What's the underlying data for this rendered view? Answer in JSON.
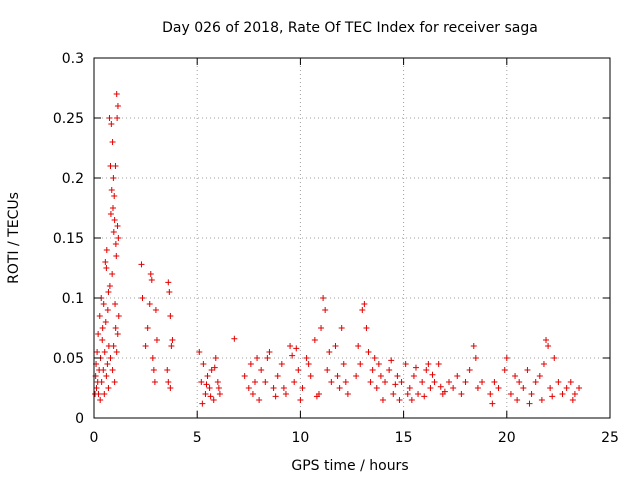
{
  "chart_data": {
    "type": "scatter",
    "title": "Day 026 of 2018, Rate Of TEC Index for receiver saga",
    "xlabel": "GPS time / hours",
    "ylabel": "ROTI / TECUs",
    "xlim": [
      0,
      25
    ],
    "ylim": [
      0,
      0.3
    ],
    "xticks": [
      0,
      5,
      10,
      15,
      20,
      25
    ],
    "xtick_labels": [
      "0",
      "5",
      "10",
      "15",
      "20",
      "25"
    ],
    "yticks": [
      0,
      0.05,
      0.1,
      0.15,
      0.2,
      0.25,
      0.3
    ],
    "ytick_labels": [
      "0",
      "0.05",
      "0.1",
      "0.15",
      "0.2",
      "0.25",
      "0.3"
    ],
    "grid": true,
    "marker": "+",
    "marker_color": "#e00000",
    "series": [
      {
        "name": "ROTI",
        "points": [
          [
            0.05,
            0.02
          ],
          [
            0.08,
            0.035
          ],
          [
            0.1,
            0.045
          ],
          [
            0.12,
            0.025
          ],
          [
            0.15,
            0.055
          ],
          [
            0.18,
            0.03
          ],
          [
            0.2,
            0.07
          ],
          [
            0.22,
            0.02
          ],
          [
            0.25,
            0.04
          ],
          [
            0.28,
            0.085
          ],
          [
            0.3,
            0.015
          ],
          [
            0.32,
            0.05
          ],
          [
            0.35,
            0.1
          ],
          [
            0.37,
            0.03
          ],
          [
            0.4,
            0.065
          ],
          [
            0.42,
            0.075
          ],
          [
            0.45,
            0.04
          ],
          [
            0.47,
            0.095
          ],
          [
            0.5,
            0.02
          ],
          [
            0.52,
            0.055
          ],
          [
            0.55,
            0.13
          ],
          [
            0.57,
            0.08
          ],
          [
            0.6,
            0.125
          ],
          [
            0.62,
            0.14
          ],
          [
            0.65,
            0.045
          ],
          [
            0.67,
            0.09
          ],
          [
            0.7,
            0.105
          ],
          [
            0.72,
            0.06
          ],
          [
            0.75,
            0.25
          ],
          [
            0.77,
            0.11
          ],
          [
            0.8,
            0.21
          ],
          [
            0.82,
            0.17
          ],
          [
            0.84,
            0.245
          ],
          [
            0.86,
            0.19
          ],
          [
            0.88,
            0.12
          ],
          [
            0.9,
            0.23
          ],
          [
            0.92,
            0.175
          ],
          [
            0.94,
            0.2
          ],
          [
            0.96,
            0.155
          ],
          [
            0.98,
            0.185
          ],
          [
            1.0,
            0.165
          ],
          [
            1.02,
            0.095
          ],
          [
            1.04,
            0.21
          ],
          [
            1.06,
            0.145
          ],
          [
            1.08,
            0.135
          ],
          [
            1.1,
            0.27
          ],
          [
            1.12,
            0.25
          ],
          [
            1.14,
            0.16
          ],
          [
            1.16,
            0.26
          ],
          [
            1.18,
            0.15
          ],
          [
            0.9,
            0.04
          ],
          [
            0.95,
            0.06
          ],
          [
            1.0,
            0.03
          ],
          [
            1.05,
            0.075
          ],
          [
            1.1,
            0.055
          ],
          [
            0.6,
            0.035
          ],
          [
            0.7,
            0.025
          ],
          [
            0.8,
            0.05
          ],
          [
            1.15,
            0.07
          ],
          [
            1.2,
            0.085
          ],
          [
            2.3,
            0.128
          ],
          [
            2.35,
            0.1
          ],
          [
            2.5,
            0.06
          ],
          [
            2.6,
            0.075
          ],
          [
            2.7,
            0.095
          ],
          [
            2.75,
            0.12
          ],
          [
            2.8,
            0.115
          ],
          [
            2.85,
            0.05
          ],
          [
            2.9,
            0.04
          ],
          [
            2.95,
            0.03
          ],
          [
            3.0,
            0.09
          ],
          [
            3.05,
            0.065
          ],
          [
            3.6,
            0.113
          ],
          [
            3.65,
            0.105
          ],
          [
            3.7,
            0.085
          ],
          [
            3.75,
            0.06
          ],
          [
            3.55,
            0.04
          ],
          [
            3.6,
            0.03
          ],
          [
            3.7,
            0.025
          ],
          [
            3.8,
            0.065
          ],
          [
            5.1,
            0.055
          ],
          [
            5.2,
            0.03
          ],
          [
            5.3,
            0.045
          ],
          [
            5.4,
            0.02
          ],
          [
            5.5,
            0.035
          ],
          [
            5.6,
            0.025
          ],
          [
            5.7,
            0.04
          ],
          [
            5.8,
            0.015
          ],
          [
            5.9,
            0.05
          ],
          [
            6.0,
            0.03
          ],
          [
            6.1,
            0.02
          ],
          [
            5.25,
            0.012
          ],
          [
            5.45,
            0.028
          ],
          [
            5.65,
            0.018
          ],
          [
            5.85,
            0.042
          ],
          [
            6.05,
            0.025
          ],
          [
            6.8,
            0.066
          ],
          [
            7.3,
            0.035
          ],
          [
            7.5,
            0.025
          ],
          [
            7.7,
            0.02
          ],
          [
            7.9,
            0.05
          ],
          [
            8.1,
            0.04
          ],
          [
            8.3,
            0.03
          ],
          [
            8.5,
            0.055
          ],
          [
            8.7,
            0.025
          ],
          [
            8.9,
            0.035
          ],
          [
            9.1,
            0.045
          ],
          [
            9.3,
            0.02
          ],
          [
            9.5,
            0.06
          ],
          [
            9.7,
            0.03
          ],
          [
            9.9,
            0.04
          ],
          [
            10.1,
            0.025
          ],
          [
            10.3,
            0.05
          ],
          [
            10.5,
            0.035
          ],
          [
            10.7,
            0.065
          ],
          [
            10.9,
            0.02
          ],
          [
            11.0,
            0.075
          ],
          [
            11.1,
            0.1
          ],
          [
            11.2,
            0.09
          ],
          [
            11.3,
            0.04
          ],
          [
            11.5,
            0.03
          ],
          [
            11.7,
            0.06
          ],
          [
            11.9,
            0.025
          ],
          [
            12.0,
            0.075
          ],
          [
            12.2,
            0.03
          ],
          [
            7.6,
            0.045
          ],
          [
            8.0,
            0.015
          ],
          [
            8.4,
            0.05
          ],
          [
            8.8,
            0.018
          ],
          [
            9.2,
            0.025
          ],
          [
            9.6,
            0.052
          ],
          [
            10.0,
            0.015
          ],
          [
            10.4,
            0.045
          ],
          [
            10.8,
            0.018
          ],
          [
            11.4,
            0.055
          ],
          [
            11.8,
            0.035
          ],
          [
            12.1,
            0.045
          ],
          [
            12.3,
            0.02
          ],
          [
            7.8,
            0.03
          ],
          [
            9.8,
            0.058
          ],
          [
            12.7,
            0.035
          ],
          [
            12.9,
            0.045
          ],
          [
            13.0,
            0.09
          ],
          [
            13.1,
            0.095
          ],
          [
            13.2,
            0.075
          ],
          [
            13.3,
            0.055
          ],
          [
            13.4,
            0.03
          ],
          [
            13.5,
            0.04
          ],
          [
            13.7,
            0.025
          ],
          [
            13.9,
            0.035
          ],
          [
            14.1,
            0.03
          ],
          [
            14.3,
            0.04
          ],
          [
            14.5,
            0.02
          ],
          [
            14.7,
            0.035
          ],
          [
            14.9,
            0.03
          ],
          [
            15.1,
            0.045
          ],
          [
            15.3,
            0.025
          ],
          [
            15.5,
            0.035
          ],
          [
            15.7,
            0.02
          ],
          [
            15.9,
            0.03
          ],
          [
            16.1,
            0.04
          ],
          [
            16.3,
            0.025
          ],
          [
            16.5,
            0.03
          ],
          [
            16.7,
            0.045
          ],
          [
            16.9,
            0.02
          ],
          [
            12.8,
            0.06
          ],
          [
            13.6,
            0.05
          ],
          [
            14.0,
            0.015
          ],
          [
            14.4,
            0.048
          ],
          [
            14.8,
            0.015
          ],
          [
            15.2,
            0.02
          ],
          [
            15.6,
            0.042
          ],
          [
            16.0,
            0.018
          ],
          [
            16.4,
            0.036
          ],
          [
            16.8,
            0.026
          ],
          [
            17.0,
            0.022
          ],
          [
            13.8,
            0.045
          ],
          [
            14.6,
            0.028
          ],
          [
            15.4,
            0.015
          ],
          [
            16.2,
            0.045
          ],
          [
            17.2,
            0.03
          ],
          [
            17.4,
            0.025
          ],
          [
            17.6,
            0.035
          ],
          [
            17.8,
            0.02
          ],
          [
            18.0,
            0.03
          ],
          [
            18.2,
            0.04
          ],
          [
            18.4,
            0.06
          ],
          [
            18.5,
            0.05
          ],
          [
            18.6,
            0.025
          ],
          [
            18.8,
            0.03
          ],
          [
            19.2,
            0.02
          ],
          [
            19.4,
            0.03
          ],
          [
            19.6,
            0.025
          ],
          [
            19.9,
            0.04
          ],
          [
            20.0,
            0.05
          ],
          [
            20.2,
            0.02
          ],
          [
            20.4,
            0.035
          ],
          [
            20.6,
            0.03
          ],
          [
            20.8,
            0.025
          ],
          [
            21.0,
            0.04
          ],
          [
            21.2,
            0.02
          ],
          [
            21.4,
            0.03
          ],
          [
            21.6,
            0.035
          ],
          [
            21.8,
            0.045
          ],
          [
            21.9,
            0.065
          ],
          [
            22.0,
            0.06
          ],
          [
            22.1,
            0.025
          ],
          [
            22.3,
            0.05
          ],
          [
            22.5,
            0.03
          ],
          [
            22.7,
            0.02
          ],
          [
            22.9,
            0.025
          ],
          [
            23.1,
            0.03
          ],
          [
            23.3,
            0.02
          ],
          [
            23.5,
            0.025
          ],
          [
            19.3,
            0.012
          ],
          [
            20.5,
            0.015
          ],
          [
            21.1,
            0.012
          ],
          [
            21.7,
            0.015
          ],
          [
            22.2,
            0.018
          ],
          [
            23.2,
            0.015
          ]
        ]
      }
    ]
  }
}
